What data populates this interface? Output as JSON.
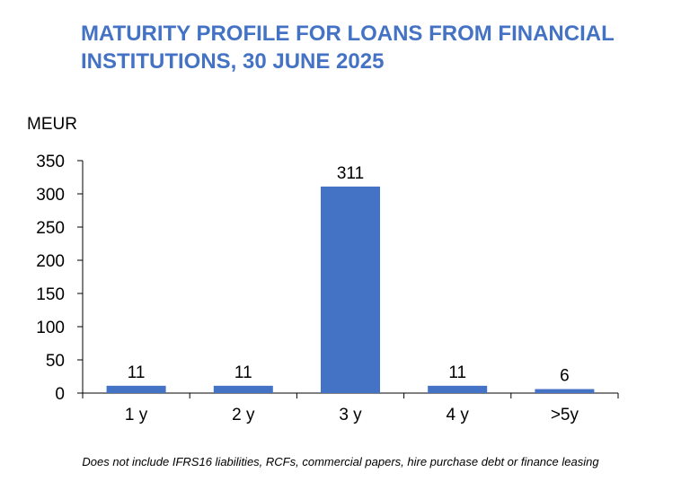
{
  "chart_data": {
    "type": "bar",
    "title": "MATURITY PROFILE FOR LOANS FROM FINANCIAL INSTITUTIONS, 30 JUNE 2025",
    "ylabel": "MEUR",
    "xlabel": "",
    "categories": [
      "1 y",
      "2 y",
      "3 y",
      "4 y",
      ">5y"
    ],
    "values": [
      11,
      11,
      311,
      11,
      6
    ],
    "data_labels": [
      "11",
      "11",
      "311",
      "11",
      "6"
    ],
    "ylim": [
      0,
      350
    ],
    "yticks": [
      0,
      50,
      100,
      150,
      200,
      250,
      300,
      350
    ],
    "grid": false,
    "legend": "none",
    "bar_color": "#4472C4",
    "footnote": "Does not include IFRS16 liabilities, RCFs, commercial papers, hire purchase debt or finance leasing"
  },
  "colors": {
    "title": "#4472C4",
    "bars": "#4472C4",
    "axis": "#000000",
    "text": "#000000"
  }
}
